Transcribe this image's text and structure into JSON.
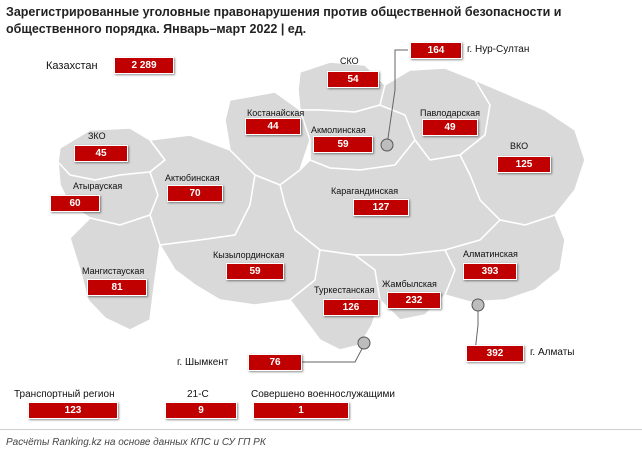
{
  "title": "Зарегистрированные уголовные правонарушения против общественной безопасности и общественного порядка. Январь–март 2022 | ед.",
  "colors": {
    "badge": "#c00000",
    "region_fill": "#d9d9d9",
    "region_border": "#ffffff"
  },
  "total": {
    "label": "Казахстан",
    "value": "2 289"
  },
  "regions": [
    {
      "name": "СКО",
      "value": "54"
    },
    {
      "name": "Костанайская",
      "value": "44"
    },
    {
      "name": "Акмолинская",
      "value": "59"
    },
    {
      "name": "Павлодарская",
      "value": "49"
    },
    {
      "name": "ЗКО",
      "value": "45"
    },
    {
      "name": "ВКО",
      "value": "125"
    },
    {
      "name": "Атырауская",
      "value": "60"
    },
    {
      "name": "Актюбинская",
      "value": "70"
    },
    {
      "name": "Карагандинская",
      "value": "127"
    },
    {
      "name": "Кызылординская",
      "value": "59"
    },
    {
      "name": "Алматинская",
      "value": "393"
    },
    {
      "name": "Мангистауская",
      "value": "81"
    },
    {
      "name": "Туркестанская",
      "value": "126"
    },
    {
      "name": "Жамбылская",
      "value": "232"
    }
  ],
  "cities": [
    {
      "name": "г. Нур-Султан",
      "value": "164"
    },
    {
      "name": "г. Шымкент",
      "value": "76"
    },
    {
      "name": "г. Алматы",
      "value": "392"
    }
  ],
  "extras": [
    {
      "label": "Транспортный регион",
      "value": "123"
    },
    {
      "label": "21-С",
      "value": "9"
    },
    {
      "label": "Совершено военнослужащими",
      "value": "1"
    }
  ],
  "footer": "Расчёты Ranking.kz на основе данных КПС и СУ ГП РК"
}
